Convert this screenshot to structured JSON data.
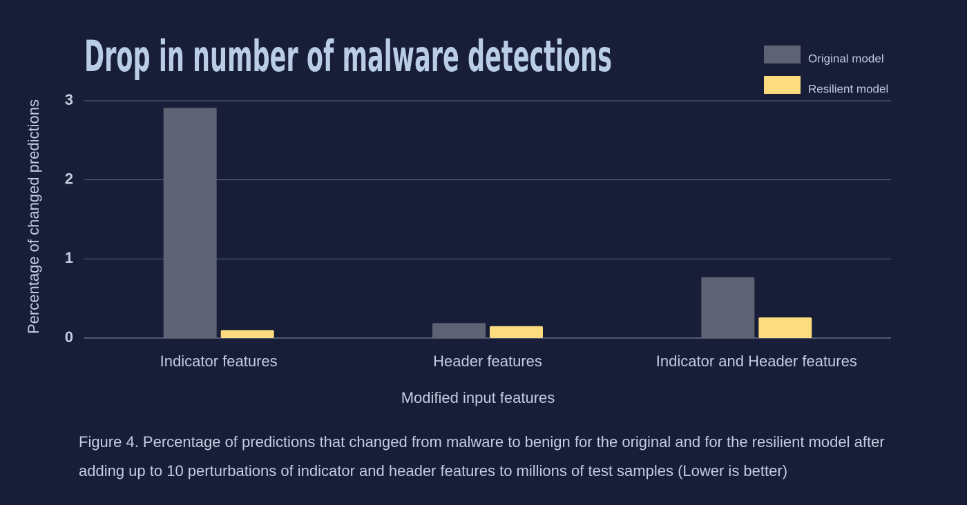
{
  "chart_data": {
    "type": "bar",
    "title": "Drop in number of malware detections",
    "x_label": "Modified input features",
    "y_label": "Percentage of changed predictions",
    "categories": [
      "Indicator features",
      "Header features",
      "Indicator and Header features"
    ],
    "series": [
      {
        "name": "Original model",
        "color": "#5f6273",
        "values": [
          2.91,
          0.19,
          0.77
        ]
      },
      {
        "name": "Resilient model",
        "color": "#fddb7f",
        "values": [
          0.1,
          0.15,
          0.26
        ]
      }
    ],
    "ylim": [
      0,
      3
    ],
    "yticks": [
      0,
      1,
      2,
      3
    ],
    "grid": true,
    "legend": "top-right",
    "caption": "Figure 4. Percentage of predictions that changed from malware to benign for the original and for the resilient model after adding up to 10 perturbations of indicator and header features to millions of test samples (Lower is better)"
  }
}
